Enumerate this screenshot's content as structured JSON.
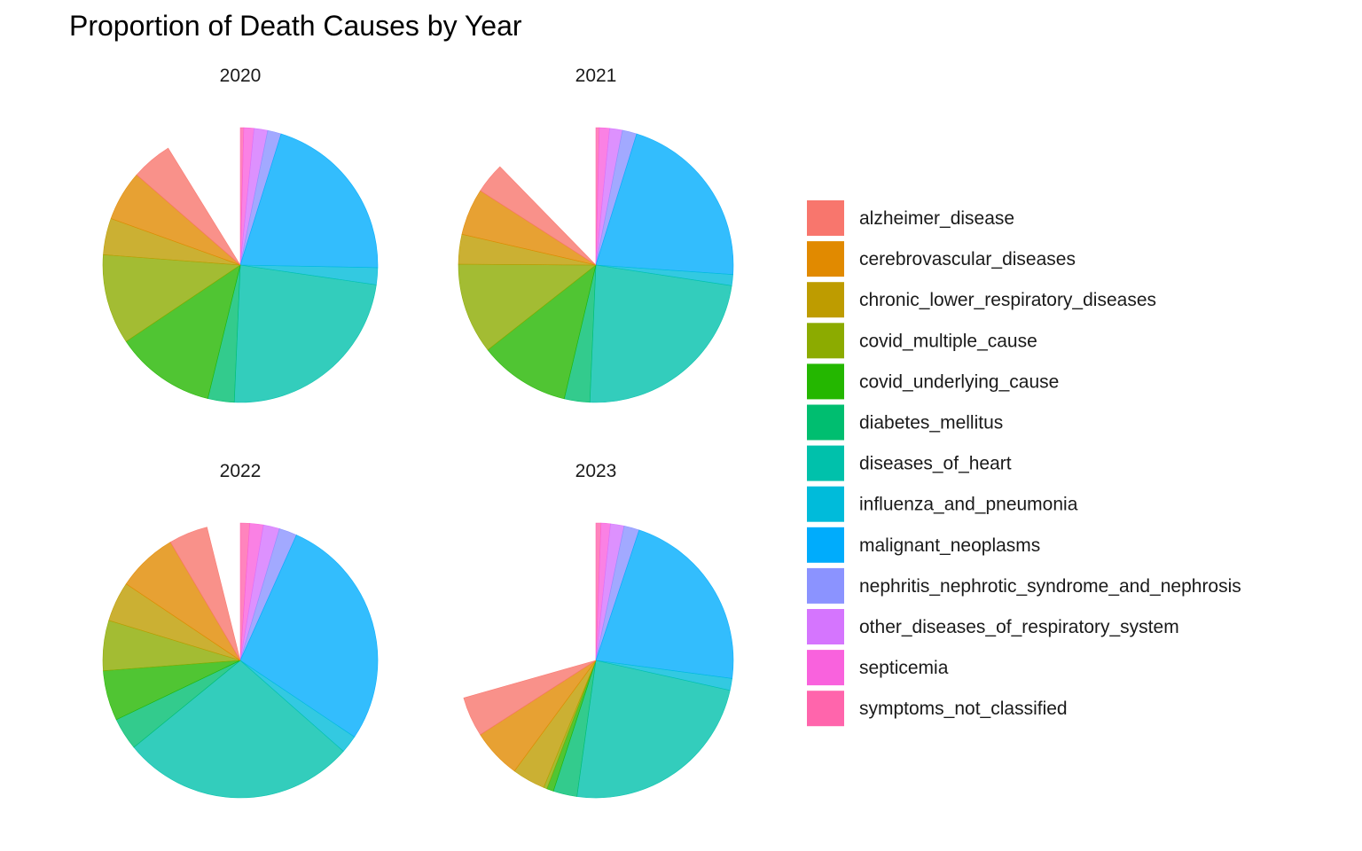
{
  "chart_data": {
    "type": "pie",
    "title": "Proportion of Death Causes by Year",
    "legend": "right",
    "categories": [
      "alzheimer_disease",
      "cerebrovascular_diseases",
      "chronic_lower_respiratory_diseases",
      "covid_multiple_cause",
      "covid_underlying_cause",
      "diabetes_mellitus",
      "diseases_of_heart",
      "influenza_and_pneumonia",
      "malignant_neoplasms",
      "nephritis_nephrotic_syndrome_and_nephrosis",
      "other_diseases_of_respiratory_system",
      "septicemia",
      "symptoms_not_classified"
    ],
    "colors": [
      "#F8766D",
      "#E18A00",
      "#BE9C00",
      "#8CAB00",
      "#24B700",
      "#00BE70",
      "#00C1AB",
      "#00BBDA",
      "#00ACFC",
      "#8B93FF",
      "#D575FE",
      "#F962DD",
      "#FF65AC"
    ],
    "panels": [
      {
        "year": "2020",
        "values": [
          0.048,
          0.059,
          0.043,
          0.106,
          0.118,
          0.031,
          0.234,
          0.02,
          0.205,
          0.016,
          0.016,
          0.012,
          0.004
        ],
        "gap_before_start": 0.0
      },
      {
        "year": "2021",
        "values": [
          0.036,
          0.055,
          0.035,
          0.107,
          0.107,
          0.03,
          0.233,
          0.013,
          0.213,
          0.017,
          0.015,
          0.012,
          0.004
        ],
        "gap_before_start": 0.03
      },
      {
        "year": "2022",
        "values": [
          0.046,
          0.071,
          0.047,
          0.059,
          0.059,
          0.038,
          0.276,
          0.021,
          0.277,
          0.021,
          0.019,
          0.016,
          0.011
        ],
        "gap_before_start": 0.02
      },
      {
        "year": "2023",
        "values": [
          0.047,
          0.058,
          0.039,
          0.004,
          0.008,
          0.028,
          0.237,
          0.014,
          0.22,
          0.018,
          0.016,
          0.011,
          0.006
        ],
        "gap_before_start": 0.3
      }
    ]
  }
}
